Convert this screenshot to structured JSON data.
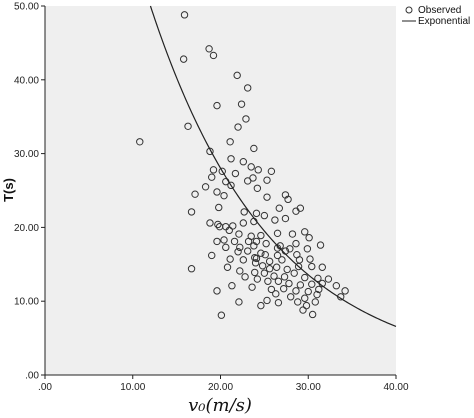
{
  "chart_data": {
    "type": "scatter",
    "title": "",
    "xlabel": "v₀(m/s)",
    "ylabel": "T(s)",
    "xlim": [
      0,
      40
    ],
    "ylim": [
      0,
      50
    ],
    "x_ticks": [
      ".00",
      "10.00",
      "20.00",
      "30.00",
      "40.00"
    ],
    "y_ticks": [
      ".00",
      "10.00",
      "20.00",
      "30.00",
      "40.00",
      "50.00"
    ],
    "x_tick_values": [
      0,
      10,
      20,
      30,
      40
    ],
    "y_tick_values": [
      0,
      10,
      20,
      30,
      40,
      50
    ],
    "grid": false,
    "legend_position": "top-right",
    "colors": {
      "plot_bg": "#efefef",
      "marker": "#333333",
      "line": "#222222"
    },
    "series": [
      {
        "name": "Observed",
        "kind": "scatter",
        "points": [
          [
            15.9,
            48.8
          ],
          [
            18.7,
            44.2
          ],
          [
            15.8,
            42.8
          ],
          [
            19.2,
            43.3
          ],
          [
            21.9,
            40.6
          ],
          [
            23.1,
            38.9
          ],
          [
            10.8,
            31.6
          ],
          [
            16.3,
            33.7
          ],
          [
            19.6,
            36.5
          ],
          [
            22.4,
            36.7
          ],
          [
            22.9,
            34.7
          ],
          [
            22.0,
            33.6
          ],
          [
            21.1,
            31.6
          ],
          [
            18.8,
            30.3
          ],
          [
            23.8,
            30.7
          ],
          [
            21.2,
            29.3
          ],
          [
            23.5,
            28.2
          ],
          [
            19.2,
            27.8
          ],
          [
            20.2,
            27.6
          ],
          [
            21.7,
            27.3
          ],
          [
            22.6,
            28.9
          ],
          [
            24.3,
            27.8
          ],
          [
            25.8,
            27.6
          ],
          [
            25.3,
            26.4
          ],
          [
            19.0,
            26.8
          ],
          [
            20.6,
            26.2
          ],
          [
            21.2,
            25.7
          ],
          [
            23.1,
            26.3
          ],
          [
            23.7,
            26.7
          ],
          [
            17.1,
            24.5
          ],
          [
            18.3,
            25.5
          ],
          [
            19.6,
            24.8
          ],
          [
            20.4,
            24.3
          ],
          [
            24.2,
            25.3
          ],
          [
            27.4,
            24.4
          ],
          [
            27.7,
            23.8
          ],
          [
            25.3,
            24.1
          ],
          [
            16.7,
            22.1
          ],
          [
            19.8,
            22.7
          ],
          [
            22.7,
            22.1
          ],
          [
            24.1,
            21.9
          ],
          [
            25.0,
            21.6
          ],
          [
            26.7,
            22.6
          ],
          [
            28.6,
            22.2
          ],
          [
            29.1,
            22.6
          ],
          [
            26.2,
            21.0
          ],
          [
            27.4,
            21.2
          ],
          [
            18.8,
            20.6
          ],
          [
            19.7,
            20.4
          ],
          [
            20.6,
            20.1
          ],
          [
            21.4,
            20.2
          ],
          [
            22.6,
            20.6
          ],
          [
            23.8,
            20.8
          ],
          [
            21.0,
            19.6
          ],
          [
            22.1,
            19.1
          ],
          [
            23.5,
            18.8
          ],
          [
            24.6,
            18.9
          ],
          [
            26.5,
            19.2
          ],
          [
            28.2,
            19.1
          ],
          [
            29.6,
            19.4
          ],
          [
            19.6,
            18.1
          ],
          [
            20.4,
            18.3
          ],
          [
            21.6,
            18.1
          ],
          [
            23.2,
            18.1
          ],
          [
            24.1,
            18.1
          ],
          [
            25.2,
            17.8
          ],
          [
            26.8,
            17.5
          ],
          [
            28.6,
            17.8
          ],
          [
            30.1,
            18.6
          ],
          [
            20.6,
            17.3
          ],
          [
            22.2,
            17.3
          ],
          [
            23.8,
            17.5
          ],
          [
            26.5,
            17.2
          ],
          [
            27.9,
            17.1
          ],
          [
            29.9,
            17.1
          ],
          [
            31.4,
            17.6
          ],
          [
            22.0,
            16.7
          ],
          [
            23.1,
            16.8
          ],
          [
            24.6,
            16.5
          ],
          [
            25.1,
            16.3
          ],
          [
            26.5,
            16.2
          ],
          [
            27.4,
            16.8
          ],
          [
            28.7,
            16.3
          ],
          [
            19.0,
            16.2
          ],
          [
            23.9,
            15.9
          ],
          [
            21.1,
            15.7
          ],
          [
            22.6,
            15.6
          ],
          [
            24.1,
            15.8
          ],
          [
            25.6,
            15.4
          ],
          [
            27.0,
            15.6
          ],
          [
            29.0,
            15.6
          ],
          [
            30.2,
            15.7
          ],
          [
            24.0,
            15.2
          ],
          [
            24.8,
            14.8
          ],
          [
            25.6,
            14.4
          ],
          [
            26.4,
            14.6
          ],
          [
            27.6,
            14.3
          ],
          [
            28.9,
            14.7
          ],
          [
            30.4,
            14.7
          ],
          [
            31.6,
            14.6
          ],
          [
            16.7,
            14.4
          ],
          [
            20.8,
            14.6
          ],
          [
            22.2,
            14.1
          ],
          [
            23.9,
            13.9
          ],
          [
            25.0,
            13.8
          ],
          [
            26.1,
            13.4
          ],
          [
            27.3,
            13.3
          ],
          [
            28.4,
            13.8
          ],
          [
            29.6,
            13.2
          ],
          [
            31.1,
            13.1
          ],
          [
            32.3,
            13.0
          ],
          [
            22.8,
            13.3
          ],
          [
            24.2,
            13.0
          ],
          [
            25.4,
            12.7
          ],
          [
            26.6,
            12.7
          ],
          [
            27.8,
            12.4
          ],
          [
            29.1,
            12.2
          ],
          [
            30.4,
            12.3
          ],
          [
            31.6,
            12.4
          ],
          [
            33.2,
            12.1
          ],
          [
            21.3,
            12.1
          ],
          [
            23.6,
            11.9
          ],
          [
            25.8,
            11.6
          ],
          [
            27.2,
            11.7
          ],
          [
            28.6,
            11.4
          ],
          [
            30.0,
            11.3
          ],
          [
            31.2,
            11.6
          ],
          [
            34.2,
            11.4
          ],
          [
            19.6,
            11.4
          ],
          [
            26.3,
            11.0
          ],
          [
            28.0,
            10.6
          ],
          [
            29.6,
            10.4
          ],
          [
            31.0,
            10.9
          ],
          [
            33.7,
            10.6
          ],
          [
            25.3,
            10.1
          ],
          [
            26.6,
            9.8
          ],
          [
            28.8,
            9.9
          ],
          [
            29.8,
            9.4
          ],
          [
            30.8,
            9.9
          ],
          [
            22.1,
            9.9
          ],
          [
            29.4,
            8.8
          ],
          [
            30.5,
            8.2
          ],
          [
            20.1,
            8.1
          ],
          [
            24.6,
            9.4
          ],
          [
            19.9,
            20.1
          ]
        ]
      },
      {
        "name": "Exponential",
        "kind": "line",
        "model": {
          "a": 119.5,
          "b": 0.0725
        }
      }
    ]
  }
}
